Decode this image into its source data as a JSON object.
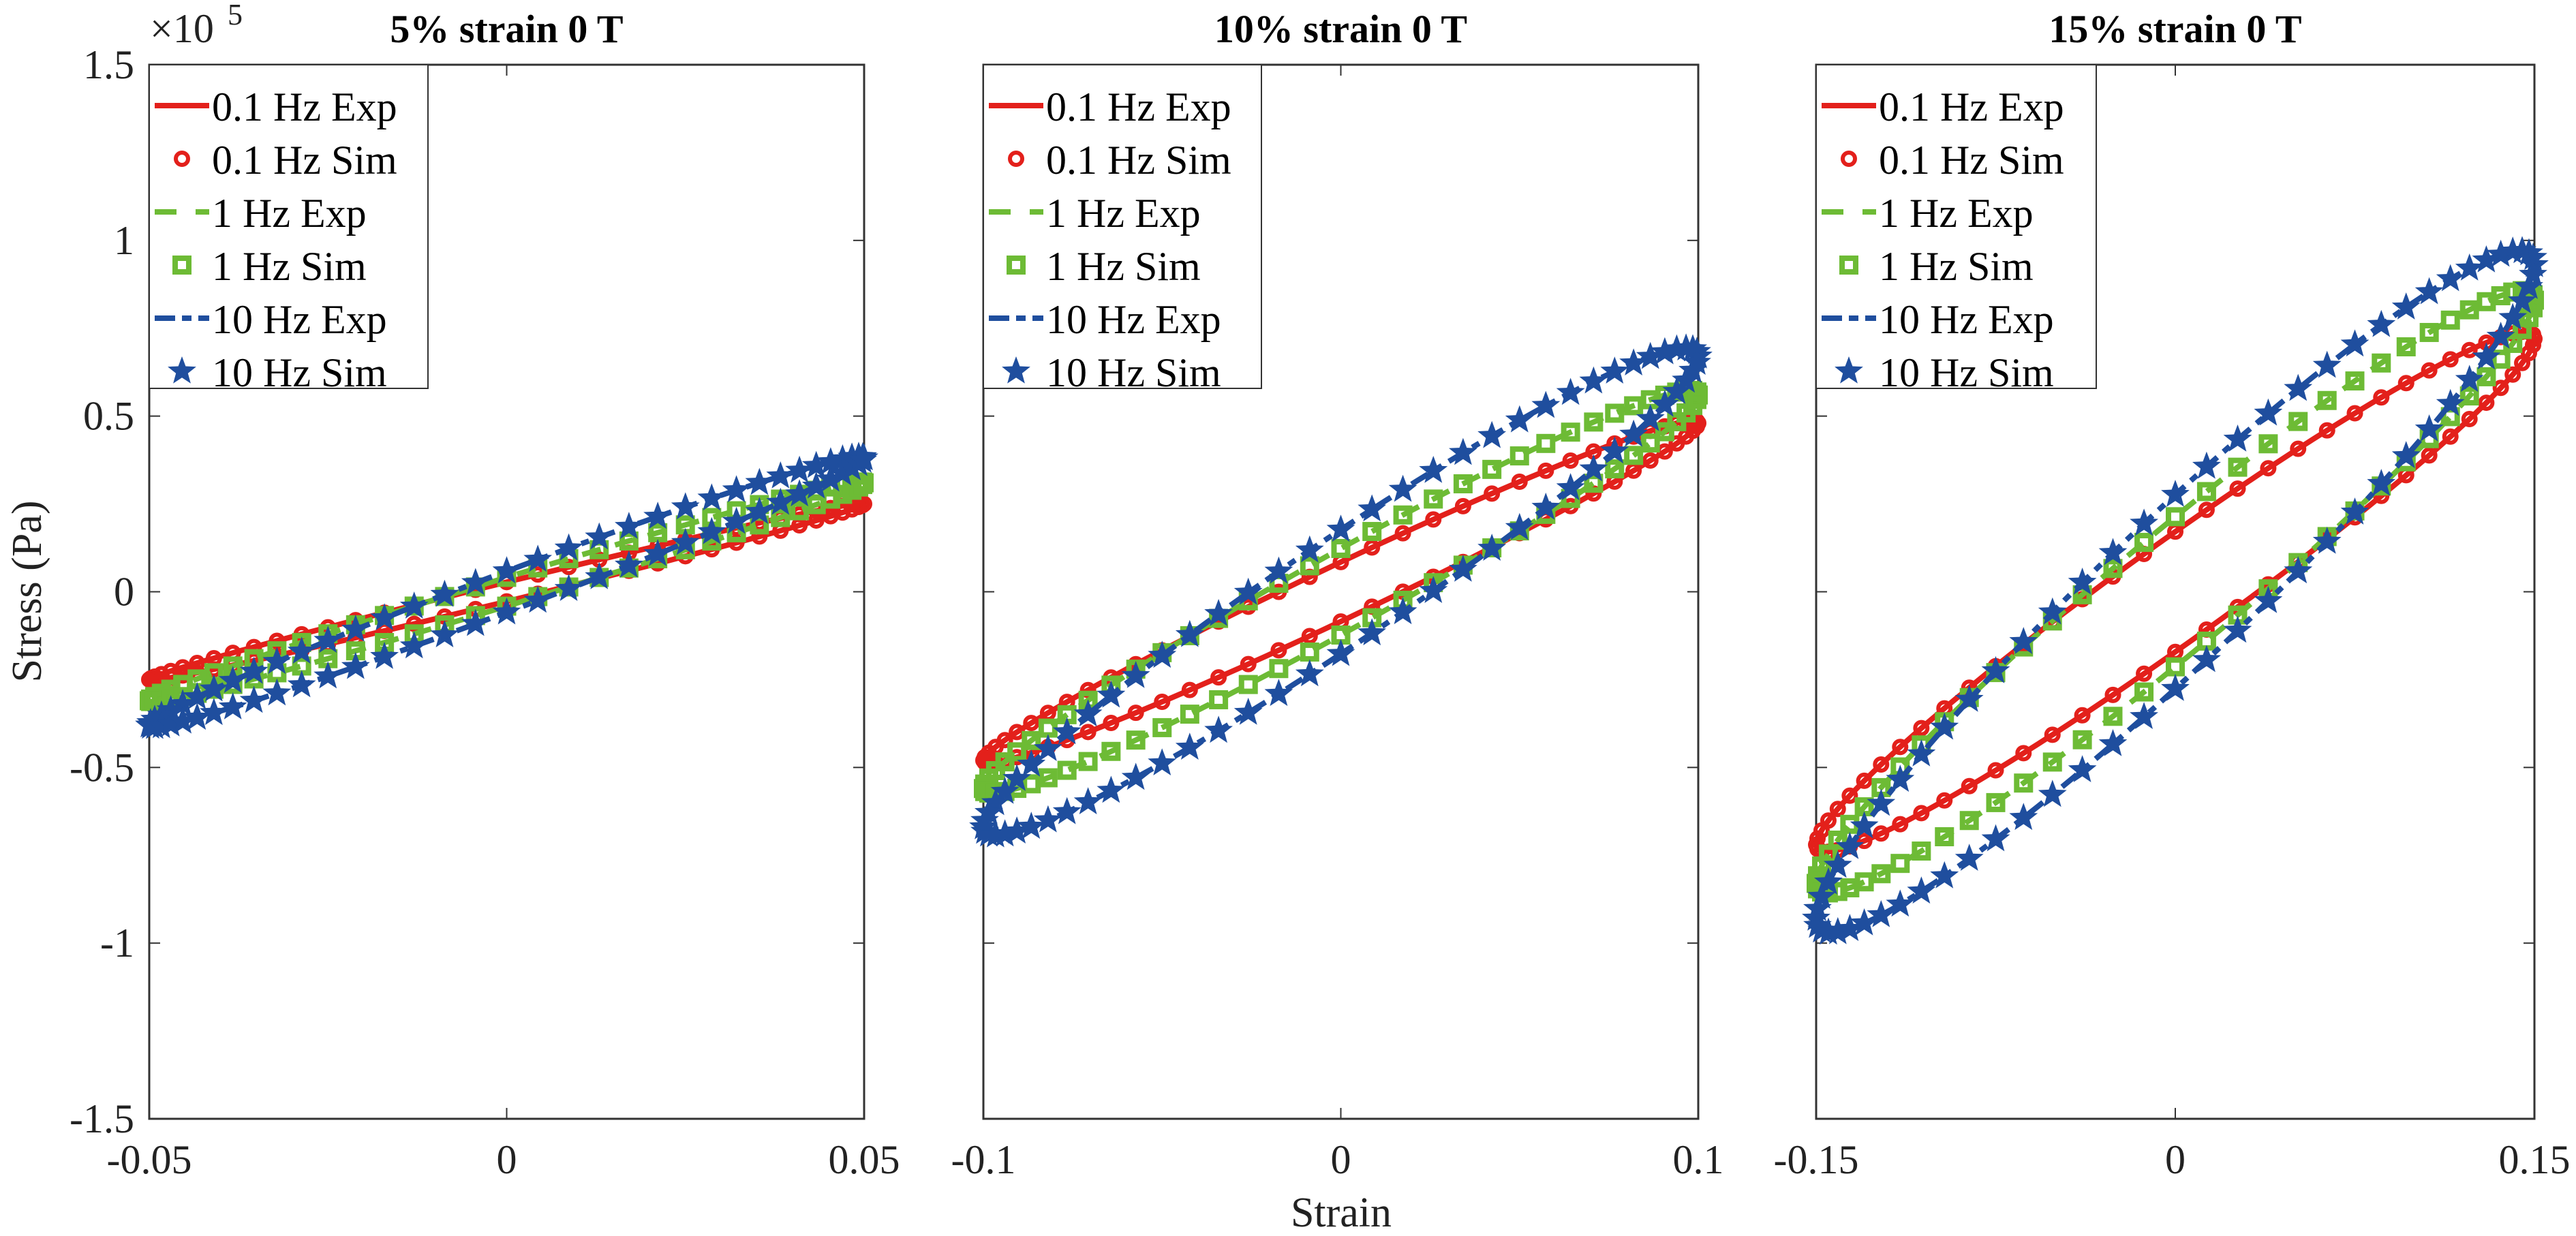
{
  "figure": {
    "shared_xlabel": "Strain",
    "shared_ylabel": "Stress (Pa)",
    "y_exponent_base": "×10",
    "y_exponent_power": "5"
  },
  "legend": [
    {
      "label": "0.1 Hz Exp",
      "color": "#e3201b",
      "style": "solid",
      "marker": "none"
    },
    {
      "label": "0.1 Hz Sim",
      "color": "#e3201b",
      "style": "none",
      "marker": "circle"
    },
    {
      "label": "1 Hz Exp",
      "color": "#6dbb35",
      "style": "dashed",
      "marker": "none"
    },
    {
      "label": "1 Hz Sim",
      "color": "#6dbb35",
      "style": "none",
      "marker": "square"
    },
    {
      "label": "10 Hz Exp",
      "color": "#1f4e9e",
      "style": "dashdot",
      "marker": "none"
    },
    {
      "label": "10 Hz Sim",
      "color": "#1f4e9e",
      "style": "none",
      "marker": "star"
    }
  ],
  "chart_data": [
    {
      "type": "line",
      "title": "5% strain 0 T",
      "xlabel": "",
      "ylabel": "Stress (Pa)",
      "y_scale_factor": 100000,
      "xlim": [
        -0.05,
        0.05
      ],
      "ylim": [
        -1.5,
        1.5
      ],
      "xticks": [
        -0.05,
        0,
        0.05
      ],
      "xtick_labels": [
        "-0.05",
        "0",
        "0.05"
      ],
      "yticks": [
        -1.5,
        -1,
        -0.5,
        0,
        0.5,
        1,
        1.5
      ],
      "ytick_labels": [
        "-1.5",
        "-1",
        "-0.5",
        "0",
        "0.5",
        "1",
        "1.5"
      ],
      "legend_position": "top-left",
      "series": [
        {
          "name": "0.1 Hz Exp",
          "strain_amplitude": 0.05,
          "stress_amplitude": 0.25,
          "loop_halfwidth": 0.05
        },
        {
          "name": "0.1 Hz Sim",
          "strain_amplitude": 0.05,
          "stress_amplitude": 0.25,
          "loop_halfwidth": 0.05
        },
        {
          "name": "1 Hz Exp",
          "strain_amplitude": 0.05,
          "stress_amplitude": 0.31,
          "loop_halfwidth": 0.06
        },
        {
          "name": "1 Hz Sim",
          "strain_amplitude": 0.05,
          "stress_amplitude": 0.31,
          "loop_halfwidth": 0.06
        },
        {
          "name": "10 Hz Exp",
          "strain_amplitude": 0.05,
          "stress_amplitude": 0.38,
          "loop_halfwidth": 0.07
        },
        {
          "name": "10 Hz Sim",
          "strain_amplitude": 0.05,
          "stress_amplitude": 0.38,
          "loop_halfwidth": 0.07
        }
      ]
    },
    {
      "type": "line",
      "title": "10% strain 0 T",
      "xlabel": "Strain",
      "ylabel": "",
      "y_scale_factor": 100000,
      "xlim": [
        -0.1,
        0.1
      ],
      "ylim": [
        -1.5,
        1.5
      ],
      "xticks": [
        -0.1,
        0,
        0.1
      ],
      "xtick_labels": [
        "-0.1",
        "0",
        "0.1"
      ],
      "yticks": [
        -1.5,
        -1,
        -0.5,
        0,
        0.5,
        1,
        1.5
      ],
      "ytick_labels": [],
      "legend_position": "top-left",
      "series": [
        {
          "name": "0.1 Hz Exp",
          "strain_amplitude": 0.1,
          "stress_amplitude": 0.48,
          "loop_halfwidth": 0.08
        },
        {
          "name": "0.1 Hz Sim",
          "strain_amplitude": 0.1,
          "stress_amplitude": 0.48,
          "loop_halfwidth": 0.08
        },
        {
          "name": "1 Hz Exp",
          "strain_amplitude": 0.1,
          "stress_amplitude": 0.56,
          "loop_halfwidth": 0.1
        },
        {
          "name": "1 Hz Sim",
          "strain_amplitude": 0.1,
          "stress_amplitude": 0.56,
          "loop_halfwidth": 0.1
        },
        {
          "name": "10 Hz Exp",
          "strain_amplitude": 0.1,
          "stress_amplitude": 0.67,
          "loop_halfwidth": 0.12
        },
        {
          "name": "10 Hz Sim",
          "strain_amplitude": 0.1,
          "stress_amplitude": 0.67,
          "loop_halfwidth": 0.12
        }
      ]
    },
    {
      "type": "line",
      "title": "15% strain 0 T",
      "xlabel": "",
      "ylabel": "",
      "y_scale_factor": 100000,
      "xlim": [
        -0.15,
        0.15
      ],
      "ylim": [
        -1.5,
        1.5
      ],
      "xticks": [
        -0.15,
        0,
        0.15
      ],
      "xtick_labels": [
        "-0.15",
        "0",
        "0.15"
      ],
      "yticks": [
        -1.5,
        -1,
        -0.5,
        0,
        0.5,
        1,
        1.5
      ],
      "ytick_labels": [],
      "legend_position": "top-left",
      "series": [
        {
          "name": "0.1 Hz Exp",
          "strain_amplitude": 0.15,
          "stress_amplitude": 0.72,
          "loop_halfwidth": 0.12
        },
        {
          "name": "0.1 Hz Sim",
          "strain_amplitude": 0.15,
          "stress_amplitude": 0.72,
          "loop_halfwidth": 0.12
        },
        {
          "name": "1 Hz Exp",
          "strain_amplitude": 0.15,
          "stress_amplitude": 0.83,
          "loop_halfwidth": 0.13
        },
        {
          "name": "1 Hz Sim",
          "strain_amplitude": 0.15,
          "stress_amplitude": 0.83,
          "loop_halfwidth": 0.13
        },
        {
          "name": "10 Hz Exp",
          "strain_amplitude": 0.15,
          "stress_amplitude": 0.93,
          "loop_halfwidth": 0.15
        },
        {
          "name": "10 Hz Sim",
          "strain_amplitude": 0.15,
          "stress_amplitude": 0.93,
          "loop_halfwidth": 0.15
        }
      ]
    }
  ]
}
